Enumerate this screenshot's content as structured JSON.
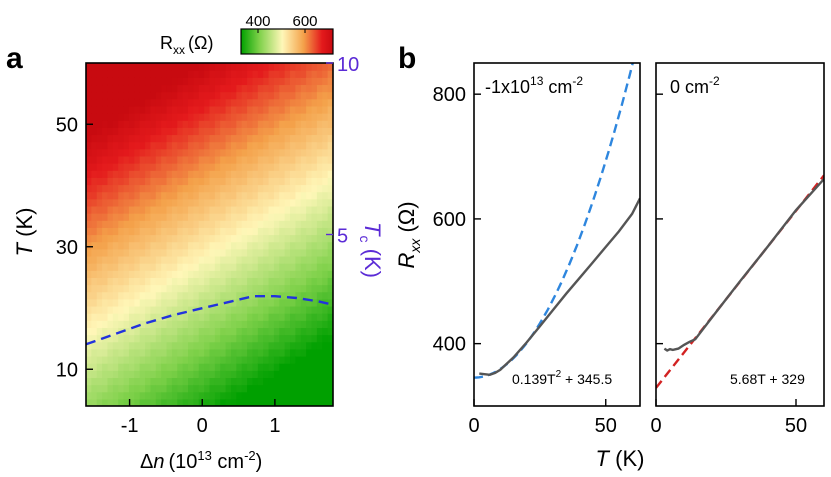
{
  "panels": {
    "a_label": "a",
    "b_label": "b"
  },
  "colorbar": {
    "label_main": "R",
    "label_sub": "xx",
    "label_unit": "(Ω)",
    "ticks": [
      "400",
      "600"
    ],
    "colors": [
      "#00a000",
      "#7fd14a",
      "#fff7b8",
      "#f4a14a",
      "#e41a1c",
      "#c80a10"
    ]
  },
  "colors": {
    "tc_line": "#2233dd",
    "tc_axis": "#5b2bd6",
    "data_line": "#555555",
    "fit_blue": "#2e86de",
    "fit_red": "#d22222",
    "axis": "#000000"
  },
  "chart_data": [
    {
      "type": "heatmap",
      "panel": "a",
      "xlabel_delta": "Δ",
      "xlabel_n": "n",
      "xlabel_unit": "(10",
      "xlabel_exp": "13",
      "xlabel_rest": " cm",
      "xlabel_exp2": "-2",
      "xlabel_close": ")",
      "ylabel_T": "T",
      "ylabel_unit": " (K)",
      "x_range": [
        -1.6,
        1.8
      ],
      "y_range": [
        4,
        60
      ],
      "x_ticks": [
        "-1",
        "0",
        "1"
      ],
      "x_tick_values": [
        -1,
        0,
        1
      ],
      "y_ticks": [
        "10",
        "30",
        "50"
      ],
      "y_tick_values": [
        10,
        30,
        50
      ],
      "right_axis": {
        "label_T": "T",
        "label_sub": "c",
        "label_unit": " (K)",
        "ticks": [
          "5",
          "10"
        ],
        "tick_values": [
          5,
          10
        ],
        "range": [
          0,
          10
        ]
      },
      "tc_curve": {
        "x": [
          -1.6,
          -1.2,
          -0.8,
          -0.4,
          0.0,
          0.4,
          0.7,
          1.0,
          1.3,
          1.6,
          1.8
        ],
        "tc": [
          1.8,
          2.1,
          2.4,
          2.65,
          2.85,
          3.05,
          3.2,
          3.2,
          3.15,
          3.05,
          2.95
        ]
      },
      "colorbar_range": [
        300,
        650
      ]
    },
    {
      "type": "line",
      "panel": "b-left",
      "annotation": "-1x10",
      "annotation_exp": "13",
      "annotation_unit": " cm",
      "annotation_exp2": "-2",
      "fit_label": "0.139T",
      "fit_label_exp": "2",
      "fit_label_rest": " + 345.5",
      "ylabel_R": "R",
      "ylabel_sub": "xx",
      "ylabel_unit": " (Ω)",
      "x_range": [
        0,
        63
      ],
      "y_range": [
        300,
        850
      ],
      "x_ticks": [
        "0",
        "50"
      ],
      "x_tick_values": [
        0,
        50
      ],
      "y_ticks": [
        "400",
        "600",
        "800"
      ],
      "y_tick_values": [
        400,
        600,
        800
      ],
      "series": [
        {
          "name": "data",
          "x": [
            2,
            4,
            6,
            8,
            10,
            12,
            15,
            20,
            25,
            30,
            35,
            40,
            45,
            50,
            55,
            60,
            63
          ],
          "values": [
            352,
            351,
            350,
            353,
            358,
            366,
            378,
            402,
            428,
            454,
            480,
            505,
            530,
            555,
            580,
            608,
            633
          ]
        },
        {
          "name": "fit",
          "equation": "0.139T^2 + 345.5"
        }
      ]
    },
    {
      "type": "line",
      "panel": "b-right",
      "annotation": "0 cm",
      "annotation_exp": "-2",
      "fit_label": "5.68T + 329",
      "xlabel_T": "T",
      "xlabel_unit": " (K)",
      "x_range": [
        0,
        60
      ],
      "y_range": [
        300,
        850
      ],
      "x_ticks": [
        "0",
        "50"
      ],
      "x_tick_values": [
        0,
        50
      ],
      "series": [
        {
          "name": "data",
          "x": [
            3,
            4,
            5,
            6,
            8,
            10,
            12,
            14,
            20,
            30,
            40,
            50,
            60
          ],
          "values": [
            392,
            389,
            391,
            390,
            392,
            398,
            403,
            407,
            442,
            500,
            556,
            614,
            664
          ]
        },
        {
          "name": "fit",
          "slope": 5.68,
          "intercept": 329
        }
      ]
    }
  ]
}
